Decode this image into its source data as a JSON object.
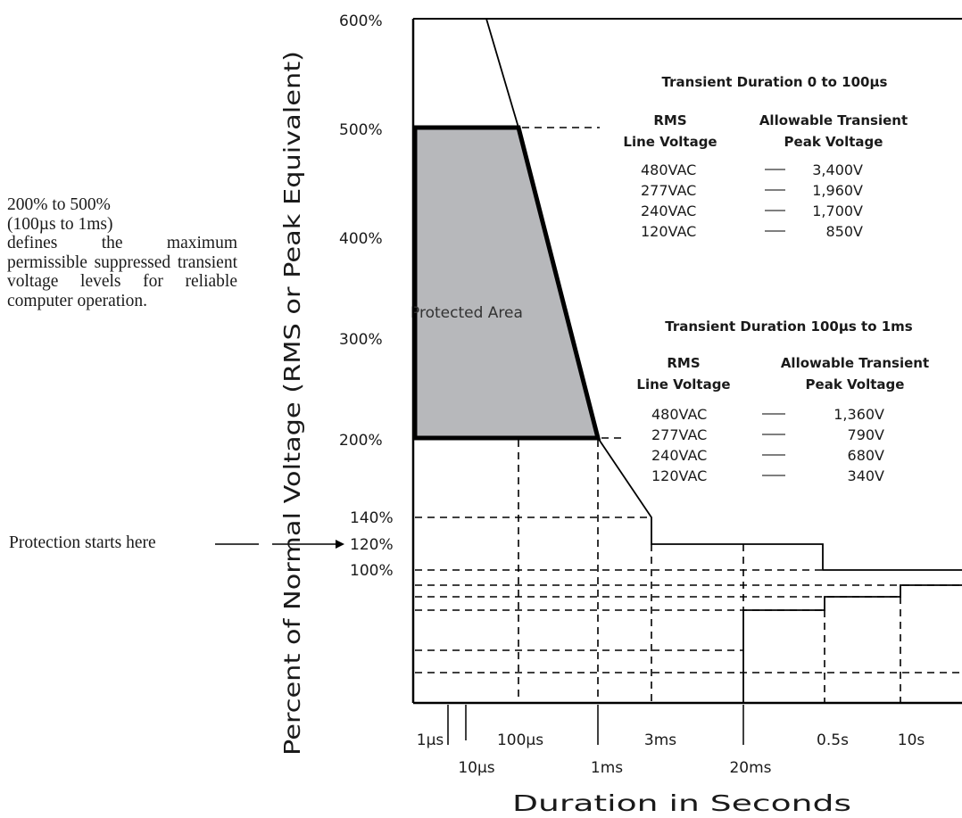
{
  "side_note": {
    "lines": [
      "200% to 500%",
      "(100µs to 1ms)",
      "defines the maximum permissible suppressed transient voltage levels for reliable computer operation."
    ]
  },
  "protection_label": "Protection starts here",
  "chart_data": {
    "type": "line",
    "xlabel": "Duration in Seconds",
    "ylabel": "Percent of Normal Voltage (RMS or Peak Equivalent)",
    "x_ticks_top": [
      "1µs",
      "100µs",
      "3ms",
      "0.5s",
      "10s"
    ],
    "x_ticks_bottom": [
      "10µs",
      "1ms",
      "20ms"
    ],
    "y_ticks": [
      {
        "label": "600%",
        "value": 600
      },
      {
        "label": "500%",
        "value": 500
      },
      {
        "label": "400%",
        "value": 400
      },
      {
        "label": "300%",
        "value": 300
      },
      {
        "label": "200%",
        "value": 200
      },
      {
        "label": "140%",
        "value": 140
      },
      {
        "label": "120%",
        "value": 120
      },
      {
        "label": "100%",
        "value": 100
      }
    ],
    "protected_area": {
      "label": "Protected Area",
      "ylim": [
        200,
        500
      ],
      "colors": {
        "fill": "#b7b8bb",
        "edge": "#000000"
      }
    },
    "tables": [
      {
        "title": "Transient Duration 0 to 100µs",
        "col1": [
          "RMS",
          "Line Voltage"
        ],
        "col2": [
          "Allowable Transient",
          "Peak Voltage"
        ],
        "rows": [
          {
            "line": "480VAC",
            "peak": "3,400V"
          },
          {
            "line": "277VAC",
            "peak": "1,960V"
          },
          {
            "line": "240VAC",
            "peak": "1,700V"
          },
          {
            "line": "120VAC",
            "peak": "850V"
          }
        ]
      },
      {
        "title": "Transient Duration 100µs to 1ms",
        "col1": [
          "RMS",
          "Line Voltage"
        ],
        "col2": [
          "Allowable Transient",
          "Peak Voltage"
        ],
        "rows": [
          {
            "line": "480VAC",
            "peak": "1,360V"
          },
          {
            "line": "277VAC",
            "peak": "790V"
          },
          {
            "line": "240VAC",
            "peak": "680V"
          },
          {
            "line": "120VAC",
            "peak": "340V"
          }
        ]
      }
    ]
  }
}
